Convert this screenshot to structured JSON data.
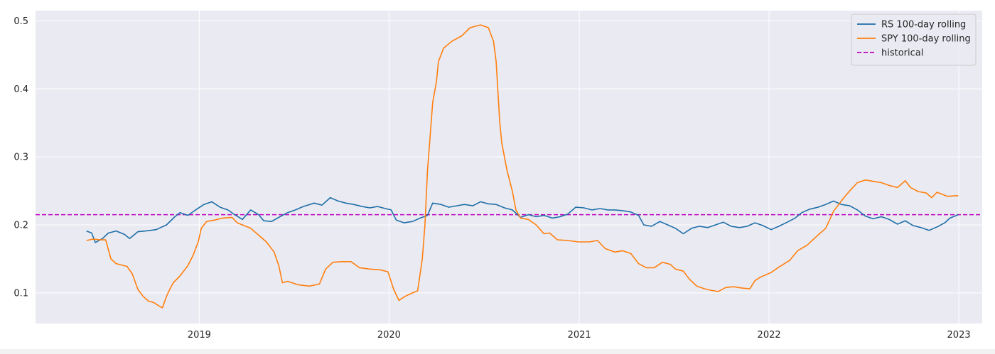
{
  "chart_data": {
    "type": "line",
    "title": "",
    "xlabel": "",
    "ylabel": "",
    "xlim": [
      "2018-02-20",
      "2023-02-15"
    ],
    "ylim": [
      0.055,
      0.515
    ],
    "grid": true,
    "legend_position": "top-right",
    "x_ticks": [
      "2019-01-01",
      "2020-01-01",
      "2021-01-01",
      "2022-01-01",
      "2023-01-01"
    ],
    "x_tick_labels": [
      "2019",
      "2020",
      "2021",
      "2022",
      "2023"
    ],
    "y_ticks": [
      0.1,
      0.2,
      0.3,
      0.4,
      0.5
    ],
    "y_tick_labels": [
      "0.1",
      "0.2",
      "0.3",
      "0.4",
      "0.5"
    ],
    "hlines": [
      {
        "name": "historical",
        "y": 0.215,
        "color": "#bf00bf",
        "style": "dashed"
      }
    ],
    "series": [
      {
        "name": "RS 100-day rolling",
        "color": "#1f6fa8",
        "points": [
          [
            "2018-05-29",
            0.191
          ],
          [
            "2018-06-08",
            0.188
          ],
          [
            "2018-06-15",
            0.174
          ],
          [
            "2018-06-29",
            0.18
          ],
          [
            "2018-07-10",
            0.188
          ],
          [
            "2018-07-25",
            0.191
          ],
          [
            "2018-08-10",
            0.186
          ],
          [
            "2018-08-20",
            0.18
          ],
          [
            "2018-09-05",
            0.19
          ],
          [
            "2018-09-20",
            0.191
          ],
          [
            "2018-10-10",
            0.193
          ],
          [
            "2018-10-30",
            0.2
          ],
          [
            "2018-11-15",
            0.212
          ],
          [
            "2018-11-25",
            0.218
          ],
          [
            "2018-12-10",
            0.214
          ],
          [
            "2018-12-25",
            0.222
          ],
          [
            "2019-01-10",
            0.23
          ],
          [
            "2019-01-25",
            0.234
          ],
          [
            "2019-02-10",
            0.226
          ],
          [
            "2019-02-25",
            0.222
          ],
          [
            "2019-03-10",
            0.215
          ],
          [
            "2019-03-25",
            0.208
          ],
          [
            "2019-04-10",
            0.222
          ],
          [
            "2019-04-25",
            0.215
          ],
          [
            "2019-05-05",
            0.206
          ],
          [
            "2019-05-20",
            0.205
          ],
          [
            "2019-06-05",
            0.212
          ],
          [
            "2019-06-20",
            0.218
          ],
          [
            "2019-07-05",
            0.222
          ],
          [
            "2019-07-20",
            0.227
          ],
          [
            "2019-08-10",
            0.232
          ],
          [
            "2019-08-25",
            0.229
          ],
          [
            "2019-09-10",
            0.24
          ],
          [
            "2019-09-25",
            0.235
          ],
          [
            "2019-10-10",
            0.232
          ],
          [
            "2019-10-25",
            0.23
          ],
          [
            "2019-11-10",
            0.227
          ],
          [
            "2019-11-25",
            0.225
          ],
          [
            "2019-12-10",
            0.227
          ],
          [
            "2019-12-25",
            0.224
          ],
          [
            "2020-01-05",
            0.222
          ],
          [
            "2020-01-15",
            0.207
          ],
          [
            "2020-01-30",
            0.203
          ],
          [
            "2020-02-15",
            0.205
          ],
          [
            "2020-03-01",
            0.21
          ],
          [
            "2020-03-15",
            0.214
          ],
          [
            "2020-03-25",
            0.232
          ],
          [
            "2020-04-10",
            0.23
          ],
          [
            "2020-04-25",
            0.226
          ],
          [
            "2020-05-10",
            0.228
          ],
          [
            "2020-05-25",
            0.23
          ],
          [
            "2020-06-10",
            0.228
          ],
          [
            "2020-06-25",
            0.234
          ],
          [
            "2020-07-10",
            0.231
          ],
          [
            "2020-07-25",
            0.23
          ],
          [
            "2020-08-10",
            0.225
          ],
          [
            "2020-08-25",
            0.222
          ],
          [
            "2020-09-10",
            0.211
          ],
          [
            "2020-09-25",
            0.215
          ],
          [
            "2020-10-10",
            0.212
          ],
          [
            "2020-10-25",
            0.214
          ],
          [
            "2020-11-10",
            0.21
          ],
          [
            "2020-11-25",
            0.212
          ],
          [
            "2020-12-10",
            0.216
          ],
          [
            "2020-12-25",
            0.226
          ],
          [
            "2021-01-10",
            0.225
          ],
          [
            "2021-01-25",
            0.222
          ],
          [
            "2021-02-10",
            0.224
          ],
          [
            "2021-02-25",
            0.222
          ],
          [
            "2021-03-10",
            0.222
          ],
          [
            "2021-03-25",
            0.221
          ],
          [
            "2021-04-10",
            0.219
          ],
          [
            "2021-04-25",
            0.214
          ],
          [
            "2021-05-05",
            0.2
          ],
          [
            "2021-05-20",
            0.198
          ],
          [
            "2021-06-05",
            0.205
          ],
          [
            "2021-06-20",
            0.2
          ],
          [
            "2021-07-05",
            0.195
          ],
          [
            "2021-07-20",
            0.187
          ],
          [
            "2021-08-05",
            0.195
          ],
          [
            "2021-08-20",
            0.198
          ],
          [
            "2021-09-05",
            0.196
          ],
          [
            "2021-09-20",
            0.2
          ],
          [
            "2021-10-05",
            0.204
          ],
          [
            "2021-10-20",
            0.198
          ],
          [
            "2021-11-05",
            0.196
          ],
          [
            "2021-11-20",
            0.198
          ],
          [
            "2021-12-05",
            0.203
          ],
          [
            "2021-12-20",
            0.199
          ],
          [
            "2022-01-05",
            0.193
          ],
          [
            "2022-01-20",
            0.198
          ],
          [
            "2022-02-05",
            0.204
          ],
          [
            "2022-02-20",
            0.21
          ],
          [
            "2022-03-05",
            0.218
          ],
          [
            "2022-03-20",
            0.223
          ],
          [
            "2022-04-05",
            0.226
          ],
          [
            "2022-04-20",
            0.23
          ],
          [
            "2022-05-05",
            0.235
          ],
          [
            "2022-05-20",
            0.23
          ],
          [
            "2022-06-05",
            0.228
          ],
          [
            "2022-06-20",
            0.222
          ],
          [
            "2022-07-05",
            0.213
          ],
          [
            "2022-07-20",
            0.209
          ],
          [
            "2022-08-05",
            0.212
          ],
          [
            "2022-08-20",
            0.208
          ],
          [
            "2022-09-05",
            0.201
          ],
          [
            "2022-09-20",
            0.206
          ],
          [
            "2022-10-05",
            0.199
          ],
          [
            "2022-10-20",
            0.196
          ],
          [
            "2022-11-05",
            0.192
          ],
          [
            "2022-11-20",
            0.197
          ],
          [
            "2022-12-05",
            0.203
          ],
          [
            "2022-12-15",
            0.21
          ],
          [
            "2022-12-31",
            0.215
          ]
        ]
      },
      {
        "name": "SPY 100-day rolling",
        "color": "#ff7f0e",
        "points": [
          [
            "2018-05-29",
            0.177
          ],
          [
            "2018-06-10",
            0.179
          ],
          [
            "2018-06-25",
            0.178
          ],
          [
            "2018-07-05",
            0.178
          ],
          [
            "2018-07-15",
            0.15
          ],
          [
            "2018-07-25",
            0.143
          ],
          [
            "2018-08-15",
            0.139
          ],
          [
            "2018-08-25",
            0.128
          ],
          [
            "2018-09-05",
            0.105
          ],
          [
            "2018-09-15",
            0.095
          ],
          [
            "2018-09-25",
            0.088
          ],
          [
            "2018-10-05",
            0.086
          ],
          [
            "2018-10-15",
            0.081
          ],
          [
            "2018-10-22",
            0.078
          ],
          [
            "2018-10-30",
            0.095
          ],
          [
            "2018-11-05",
            0.105
          ],
          [
            "2018-11-12",
            0.115
          ],
          [
            "2018-11-25",
            0.125
          ],
          [
            "2018-12-10",
            0.14
          ],
          [
            "2018-12-20",
            0.155
          ],
          [
            "2018-12-30",
            0.175
          ],
          [
            "2019-01-05",
            0.195
          ],
          [
            "2019-01-15",
            0.205
          ],
          [
            "2019-01-30",
            0.207
          ],
          [
            "2019-02-15",
            0.21
          ],
          [
            "2019-03-05",
            0.211
          ],
          [
            "2019-03-15",
            0.203
          ],
          [
            "2019-03-25",
            0.2
          ],
          [
            "2019-04-10",
            0.195
          ],
          [
            "2019-04-25",
            0.185
          ],
          [
            "2019-05-10",
            0.175
          ],
          [
            "2019-05-25",
            0.16
          ],
          [
            "2019-06-03",
            0.14
          ],
          [
            "2019-06-10",
            0.115
          ],
          [
            "2019-06-20",
            0.117
          ],
          [
            "2019-07-10",
            0.112
          ],
          [
            "2019-08-01",
            0.11
          ],
          [
            "2019-08-20",
            0.113
          ],
          [
            "2019-09-01",
            0.135
          ],
          [
            "2019-09-15",
            0.145
          ],
          [
            "2019-10-01",
            0.146
          ],
          [
            "2019-10-20",
            0.146
          ],
          [
            "2019-11-05",
            0.137
          ],
          [
            "2019-11-25",
            0.135
          ],
          [
            "2019-12-15",
            0.134
          ],
          [
            "2019-12-30",
            0.131
          ],
          [
            "2020-01-10",
            0.105
          ],
          [
            "2020-01-20",
            0.089
          ],
          [
            "2020-02-01",
            0.095
          ],
          [
            "2020-02-15",
            0.1
          ],
          [
            "2020-02-25",
            0.103
          ],
          [
            "2020-03-05",
            0.15
          ],
          [
            "2020-03-10",
            0.2
          ],
          [
            "2020-03-15",
            0.28
          ],
          [
            "2020-03-20",
            0.33
          ],
          [
            "2020-03-25",
            0.38
          ],
          [
            "2020-04-01",
            0.41
          ],
          [
            "2020-04-05",
            0.44
          ],
          [
            "2020-04-15",
            0.46
          ],
          [
            "2020-05-01",
            0.47
          ],
          [
            "2020-05-20",
            0.478
          ],
          [
            "2020-06-05",
            0.49
          ],
          [
            "2020-06-25",
            0.494
          ],
          [
            "2020-07-10",
            0.49
          ],
          [
            "2020-07-20",
            0.47
          ],
          [
            "2020-07-25",
            0.44
          ],
          [
            "2020-08-01",
            0.35
          ],
          [
            "2020-08-05",
            0.32
          ],
          [
            "2020-08-15",
            0.28
          ],
          [
            "2020-08-25",
            0.25
          ],
          [
            "2020-09-01",
            0.222
          ],
          [
            "2020-09-10",
            0.21
          ],
          [
            "2020-09-25",
            0.208
          ],
          [
            "2020-10-10",
            0.2
          ],
          [
            "2020-10-25",
            0.187
          ],
          [
            "2020-11-05",
            0.188
          ],
          [
            "2020-11-20",
            0.178
          ],
          [
            "2020-12-10",
            0.177
          ],
          [
            "2020-12-30",
            0.175
          ],
          [
            "2021-01-20",
            0.175
          ],
          [
            "2021-02-05",
            0.177
          ],
          [
            "2021-02-20",
            0.165
          ],
          [
            "2021-03-10",
            0.16
          ],
          [
            "2021-03-25",
            0.162
          ],
          [
            "2021-04-10",
            0.158
          ],
          [
            "2021-04-25",
            0.143
          ],
          [
            "2021-05-10",
            0.137
          ],
          [
            "2021-05-25",
            0.137
          ],
          [
            "2021-06-10",
            0.145
          ],
          [
            "2021-06-25",
            0.142
          ],
          [
            "2021-07-05",
            0.135
          ],
          [
            "2021-07-20",
            0.132
          ],
          [
            "2021-08-01",
            0.12
          ],
          [
            "2021-08-15",
            0.11
          ],
          [
            "2021-08-30",
            0.106
          ],
          [
            "2021-09-10",
            0.104
          ],
          [
            "2021-09-25",
            0.102
          ],
          [
            "2021-10-10",
            0.108
          ],
          [
            "2021-10-25",
            0.109
          ],
          [
            "2021-11-10",
            0.107
          ],
          [
            "2021-11-25",
            0.106
          ],
          [
            "2021-12-05",
            0.118
          ],
          [
            "2021-12-15",
            0.123
          ],
          [
            "2022-01-05",
            0.13
          ],
          [
            "2022-01-20",
            0.138
          ],
          [
            "2022-02-10",
            0.148
          ],
          [
            "2022-02-25",
            0.162
          ],
          [
            "2022-03-15",
            0.17
          ],
          [
            "2022-04-05",
            0.185
          ],
          [
            "2022-04-20",
            0.195
          ],
          [
            "2022-05-05",
            0.22
          ],
          [
            "2022-05-15",
            0.23
          ],
          [
            "2022-05-25",
            0.24
          ],
          [
            "2022-06-05",
            0.25
          ],
          [
            "2022-06-20",
            0.262
          ],
          [
            "2022-07-05",
            0.266
          ],
          [
            "2022-07-20",
            0.264
          ],
          [
            "2022-08-05",
            0.262
          ],
          [
            "2022-08-20",
            0.258
          ],
          [
            "2022-09-05",
            0.255
          ],
          [
            "2022-09-20",
            0.265
          ],
          [
            "2022-09-30",
            0.255
          ],
          [
            "2022-10-15",
            0.249
          ],
          [
            "2022-10-30",
            0.247
          ],
          [
            "2022-11-10",
            0.24
          ],
          [
            "2022-11-20",
            0.248
          ],
          [
            "2022-12-10",
            0.242
          ],
          [
            "2022-12-31",
            0.243
          ]
        ]
      }
    ]
  }
}
